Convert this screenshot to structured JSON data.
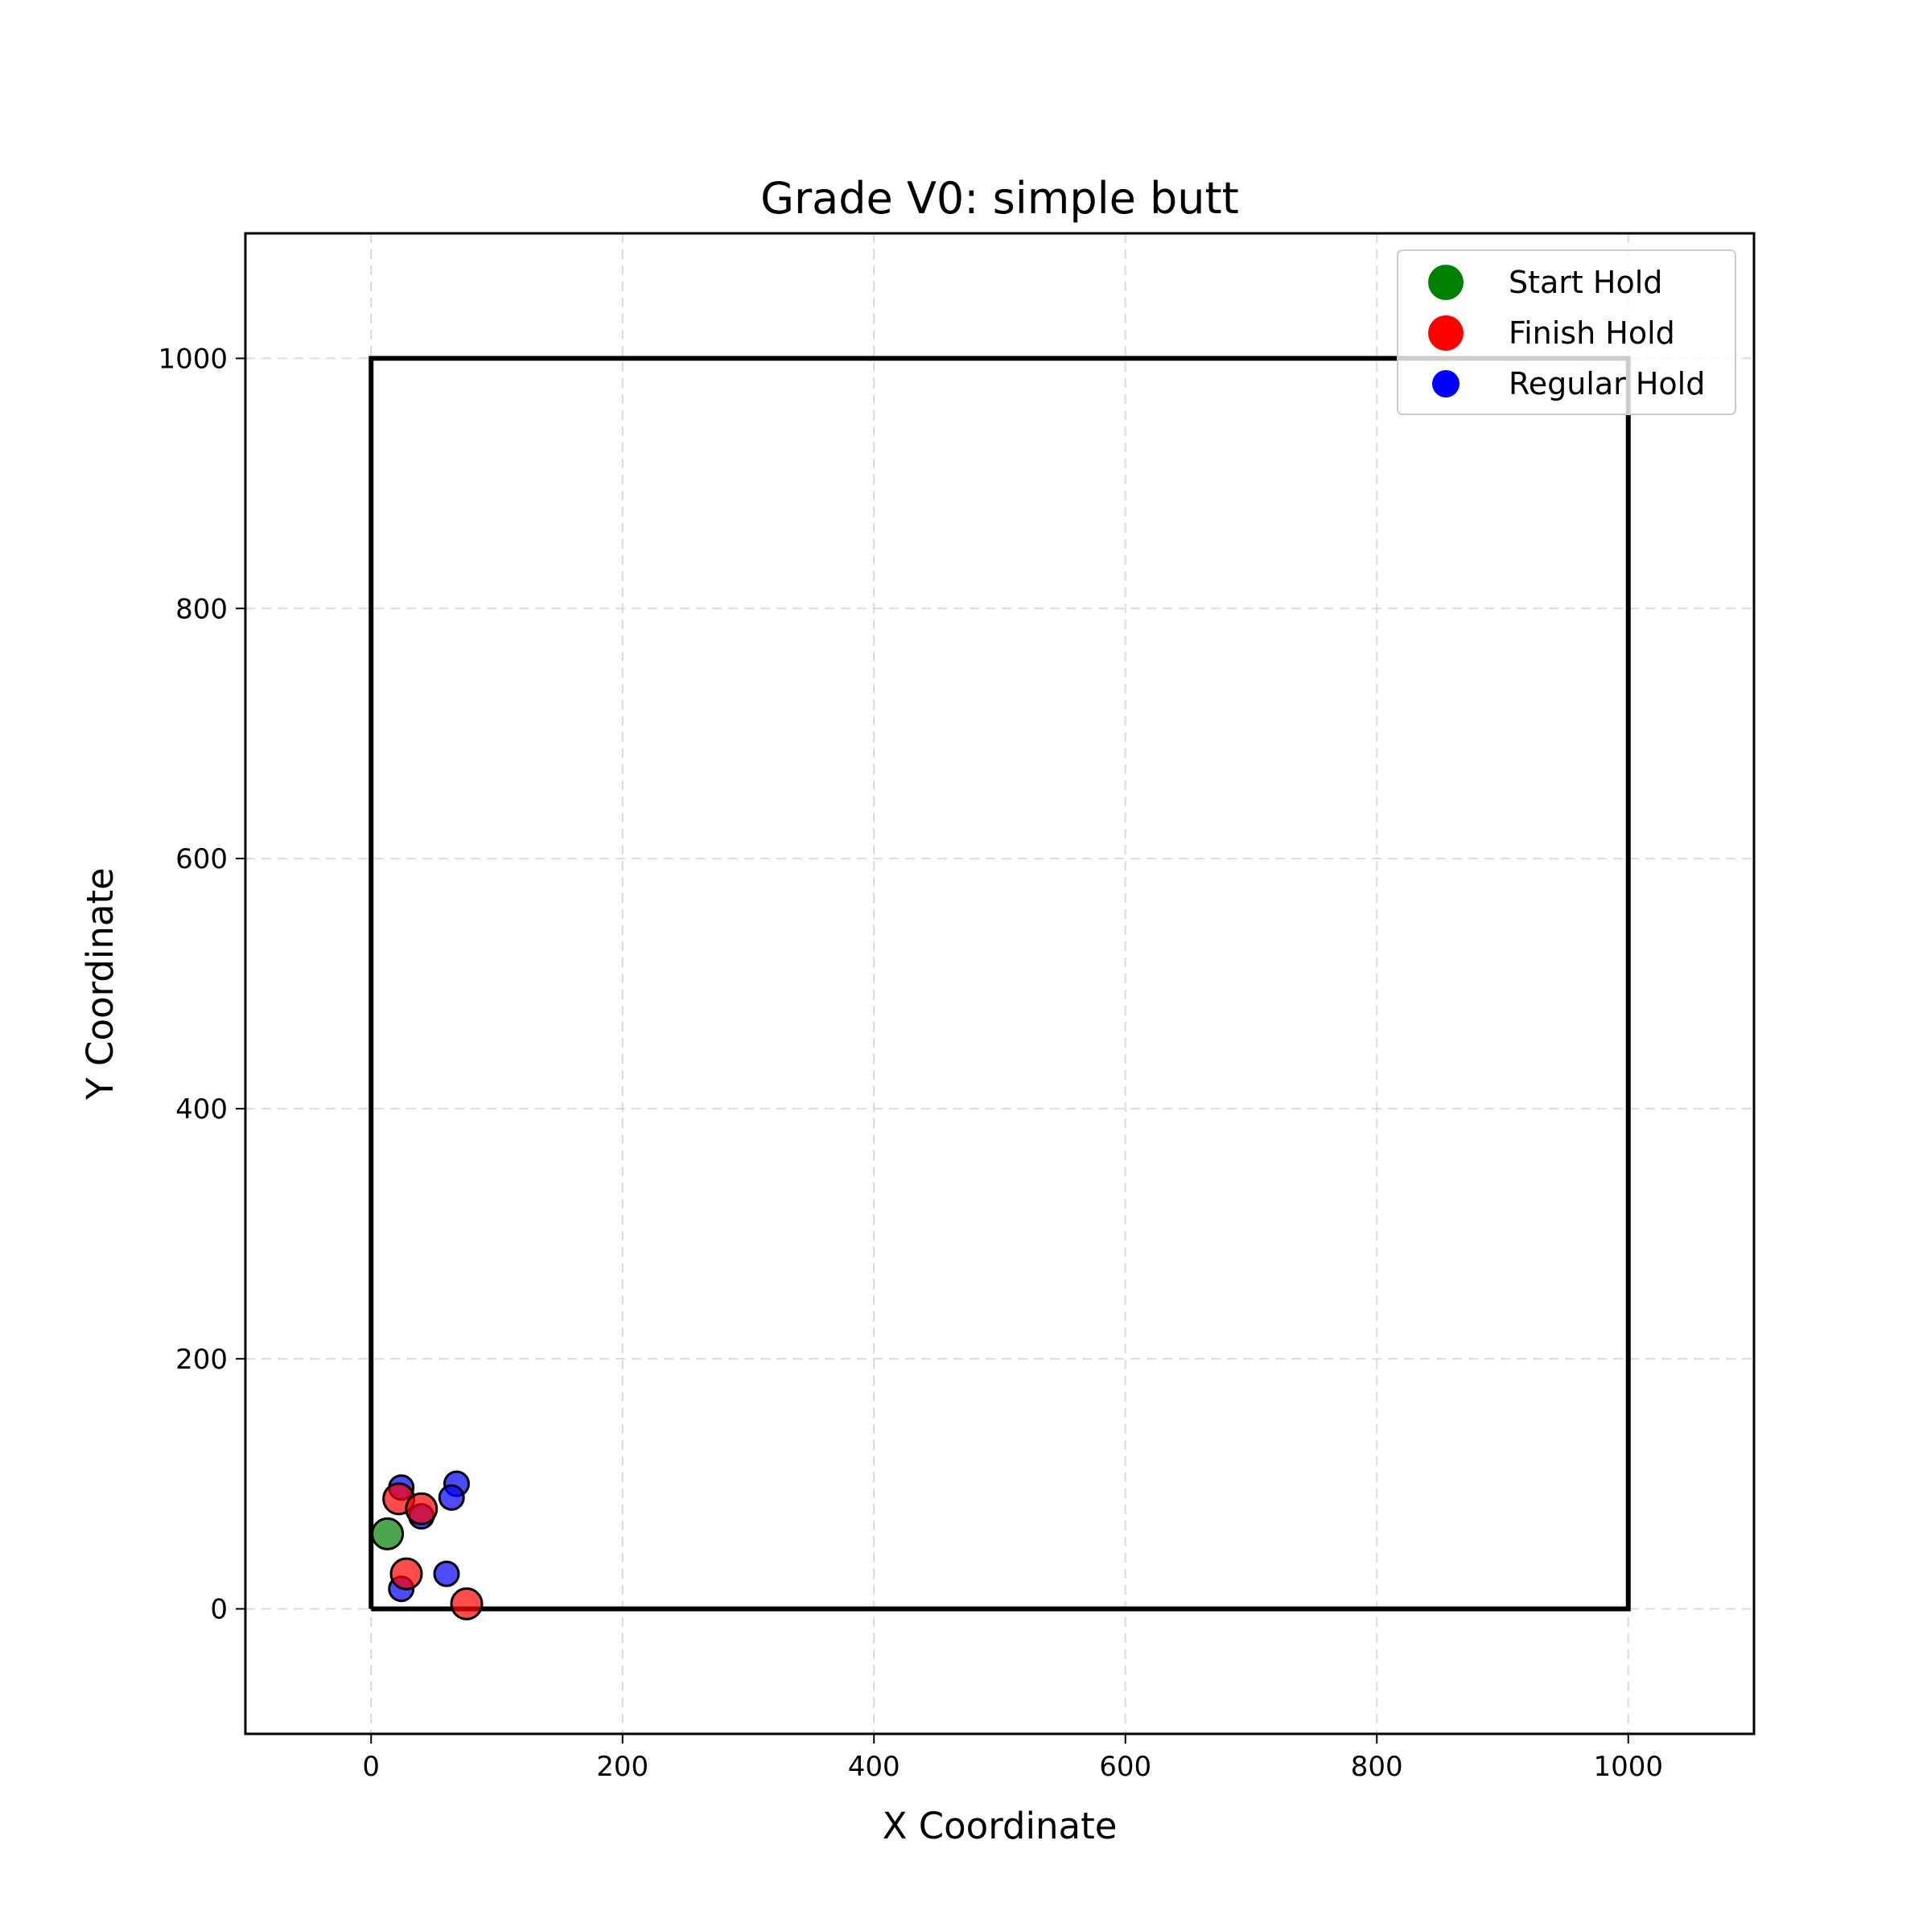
{
  "chart_data": {
    "type": "scatter",
    "title": "Grade V0: simple butt",
    "xlabel": "X Coordinate",
    "ylabel": "Y Coordinate",
    "xlim": [
      -100,
      1100
    ],
    "ylim": [
      -100,
      1100
    ],
    "xticks": [
      0,
      200,
      400,
      600,
      800,
      1000
    ],
    "yticks": [
      0,
      200,
      400,
      600,
      800,
      1000
    ],
    "grid": true,
    "legend_position": "top-right",
    "boundary": {
      "x": [
        0,
        1000,
        1000,
        0,
        0
      ],
      "y": [
        0,
        0,
        1000,
        1000,
        0
      ]
    },
    "series": [
      {
        "name": "Regular Hold",
        "color": "#0000ff",
        "points": [
          [
            24,
            97
          ],
          [
            68,
            100
          ],
          [
            64,
            89
          ],
          [
            40,
            74
          ],
          [
            24,
            16
          ],
          [
            60,
            28
          ]
        ]
      },
      {
        "name": "Finish Hold",
        "color": "#ff0000",
        "points": [
          [
            22,
            88
          ],
          [
            40,
            80
          ],
          [
            28,
            28
          ],
          [
            76,
            4
          ]
        ]
      },
      {
        "name": "Start Hold",
        "color": "#008000",
        "points": [
          [
            13,
            60
          ]
        ]
      }
    ],
    "legend_order": [
      "Start Hold",
      "Finish Hold",
      "Regular Hold"
    ]
  }
}
